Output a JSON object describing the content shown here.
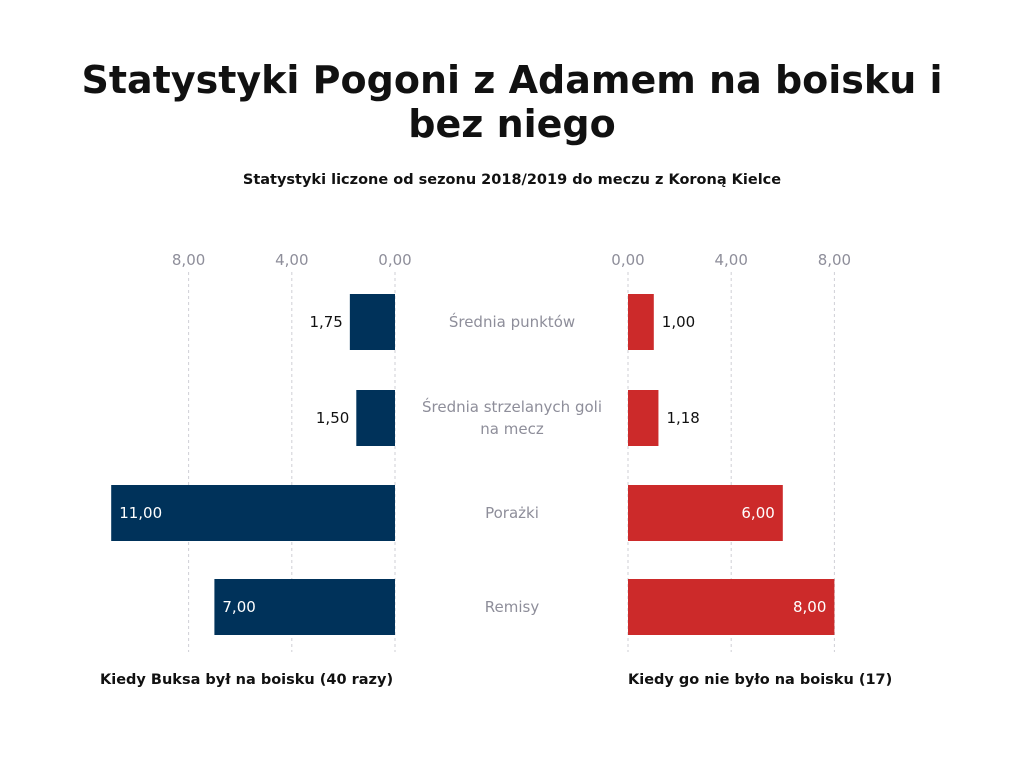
{
  "title": "Statystyki Pogoni z Adamem na boisku i bez niego",
  "subtitle": "Statystyki liczone od sezonu 2018/2019 do meczu z Koroną Kielce",
  "chart_data": {
    "type": "bar",
    "orientation": "horizontal-butterfly",
    "categories": [
      "Średnia punktów",
      "Średnia strzelanych goli na mecz",
      "Porażki",
      "Remisy"
    ],
    "category_lines": [
      [
        "Średnia punktów"
      ],
      [
        "Średnia strzelanych goli",
        "na mecz"
      ],
      [
        "Porażki"
      ],
      [
        "Remisy"
      ]
    ],
    "axis_ticks": [
      0,
      4,
      8
    ],
    "tick_labels": [
      "0,00",
      "4,00",
      "8,00"
    ],
    "series": [
      {
        "name": "Kiedy Buksa był na boisku (40 razy)",
        "side": "left",
        "color": "#00325a",
        "values": [
          1.75,
          1.5,
          11,
          7
        ],
        "labels": [
          "1,75",
          "1,50",
          "11,00",
          "7,00"
        ]
      },
      {
        "name": "Kiedy go nie było na boisku (17)",
        "side": "right",
        "color": "#cc2a2a",
        "values": [
          1.0,
          1.18,
          6,
          8
        ],
        "labels": [
          "1,00",
          "1,18",
          "6,00",
          "8,00"
        ]
      }
    ]
  }
}
